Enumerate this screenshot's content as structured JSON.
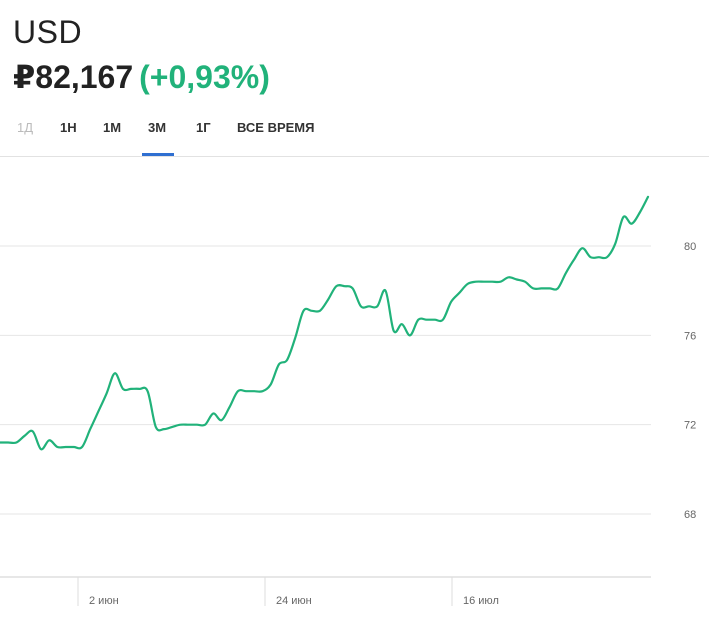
{
  "header": {
    "currency": "USD",
    "price": "₽82,167",
    "change": "(+0,93%)"
  },
  "tabs": [
    {
      "label": "1Д",
      "disabled": true
    },
    {
      "label": "1Н",
      "disabled": false
    },
    {
      "label": "1М",
      "disabled": false
    },
    {
      "label": "3М",
      "disabled": false,
      "active": true
    },
    {
      "label": "1Г",
      "disabled": false
    },
    {
      "label": "ВСЕ ВРЕМЯ",
      "disabled": false
    }
  ],
  "colors": {
    "line": "#21b27a",
    "accent_tab": "#2f6fd1",
    "grid": "#e6e6e6"
  },
  "chart_data": {
    "type": "line",
    "title": "",
    "xlabel": "",
    "ylabel": "",
    "y_ticks": [
      "68",
      "72",
      "76",
      "80"
    ],
    "x_ticks": [
      "2 июн",
      "24 июн",
      "16 июл"
    ],
    "ylim": [
      64.5,
      84
    ],
    "y_axis_side": "right",
    "grid": "horizontal",
    "series": [
      {
        "values": [
          71.2,
          71.2,
          71.2,
          71.5,
          71.7,
          70.9,
          71.3,
          71.0,
          71.0,
          71.0,
          71.0,
          71.8,
          72.6,
          73.4,
          74.3,
          73.6,
          73.6,
          73.6,
          73.5,
          71.9,
          71.8,
          71.9,
          72.0,
          72.0,
          72.0,
          72.0,
          72.5,
          72.2,
          72.8,
          73.5,
          73.5,
          73.5,
          73.5,
          73.8,
          74.7,
          74.9,
          75.9,
          77.1,
          77.1,
          77.1,
          77.6,
          78.2,
          78.2,
          78.1,
          77.3,
          77.3,
          77.3,
          78.0,
          76.2,
          76.5,
          76.0,
          76.7,
          76.7,
          76.7,
          76.7,
          77.5,
          77.9,
          78.3,
          78.4,
          78.4,
          78.4,
          78.4,
          78.6,
          78.5,
          78.4,
          78.1,
          78.1,
          78.1,
          78.1,
          78.8,
          79.4,
          79.9,
          79.5,
          79.5,
          79.5,
          80.1,
          81.3,
          81.0,
          81.5,
          82.2
        ]
      }
    ]
  }
}
